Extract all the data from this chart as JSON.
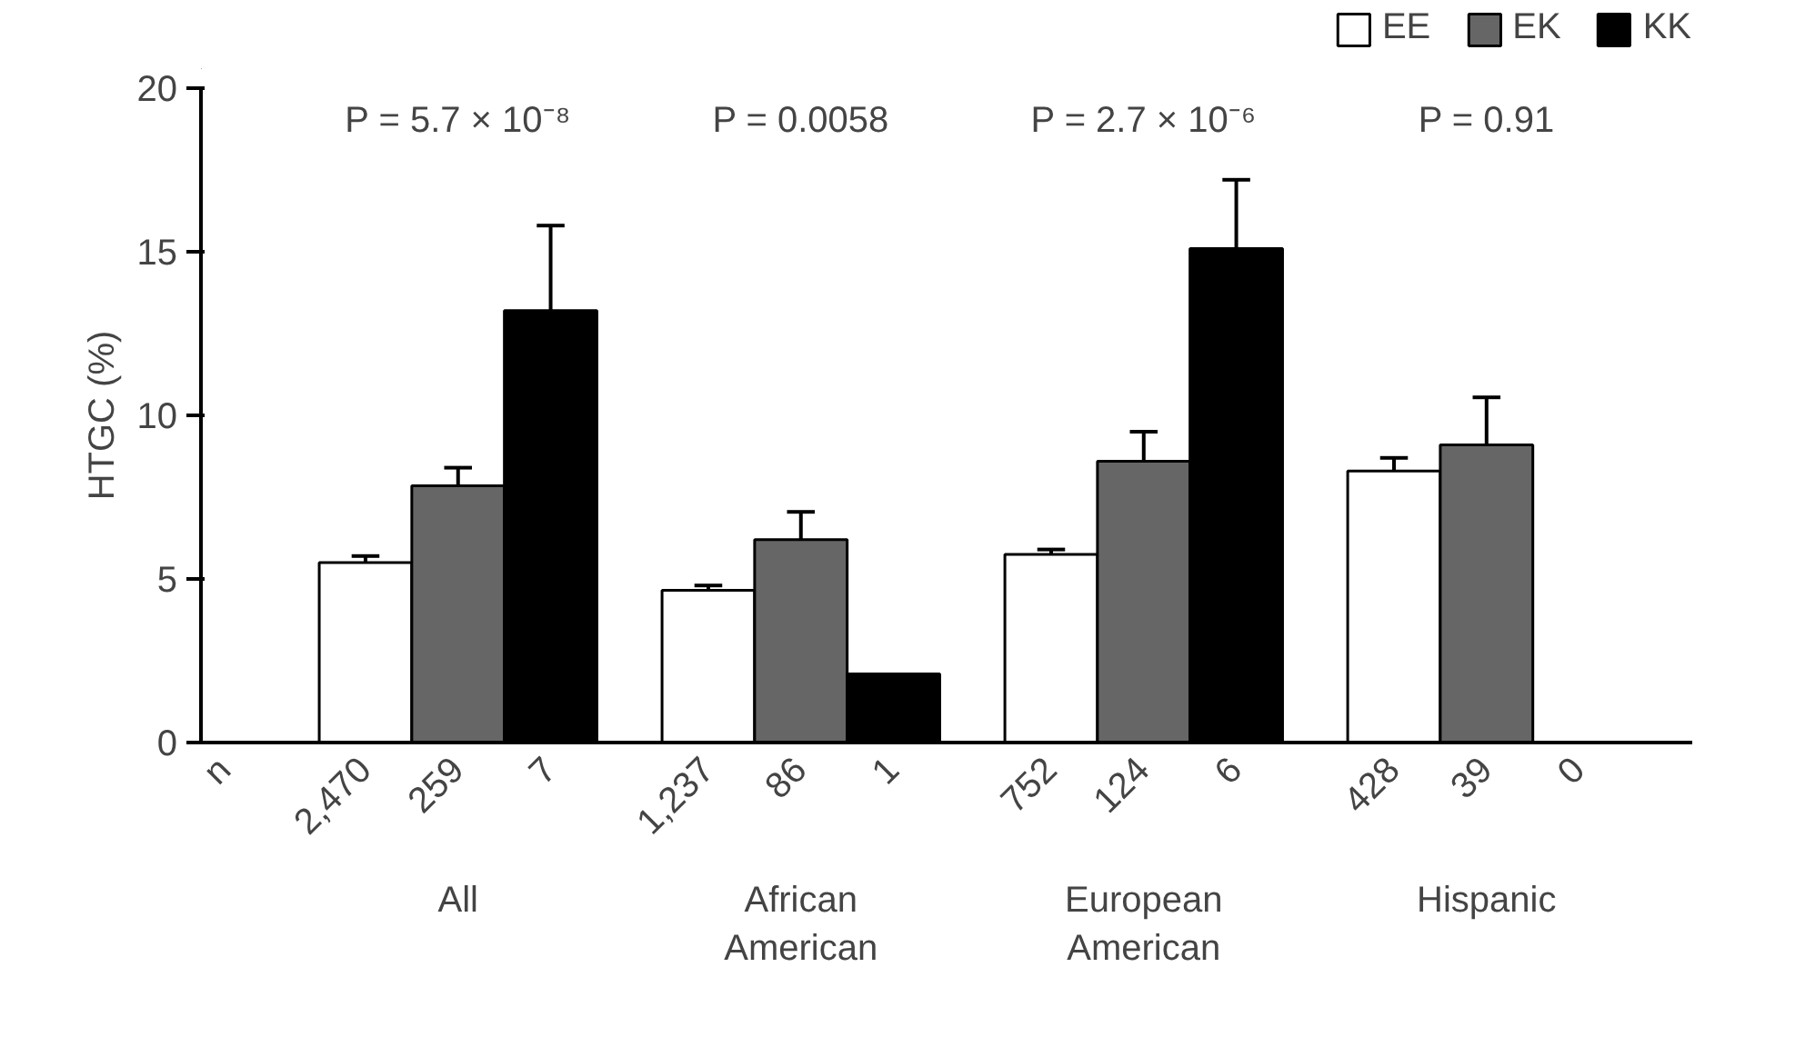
{
  "chart_data": {
    "type": "bar",
    "ylabel": "HTGC (%)",
    "categories": [
      "All",
      "African\nAmerican",
      "European\nAmerican",
      "Hispanic"
    ],
    "series": [
      {
        "name": "EE",
        "color": "#ffffff",
        "values": [
          5.5,
          4.65,
          5.75,
          8.3
        ],
        "errors": [
          [
            5.5,
            5.7
          ],
          [
            4.65,
            4.8
          ],
          [
            5.75,
            5.9
          ],
          [
            8.3,
            8.7
          ]
        ]
      },
      {
        "name": "EK",
        "color": "#666666",
        "values": [
          7.85,
          6.2,
          8.6,
          9.1
        ],
        "errors": [
          [
            7.85,
            8.4
          ],
          [
            6.2,
            7.05
          ],
          [
            8.6,
            9.5
          ],
          [
            9.1,
            10.55
          ]
        ]
      },
      {
        "name": "KK",
        "color": "#000000",
        "values": [
          13.2,
          2.1,
          15.1,
          0
        ],
        "errors": [
          [
            13.2,
            15.8
          ],
          null,
          [
            15.1,
            17.2
          ],
          null
        ]
      }
    ],
    "ylim": [
      0,
      20
    ],
    "yticks": [
      0,
      5,
      10,
      15,
      20
    ],
    "legend": "top right",
    "grid": false,
    "annotations": [
      "P = 5.7 × 10⁻⁸",
      "P = 0.0058",
      "P = 2.7 × 10⁻⁶",
      "P = 0.91",
      "n",
      "2,470",
      "259",
      "7",
      "1,237",
      "86",
      "1",
      "752",
      "124",
      "6",
      "428",
      "39",
      "0"
    ]
  }
}
